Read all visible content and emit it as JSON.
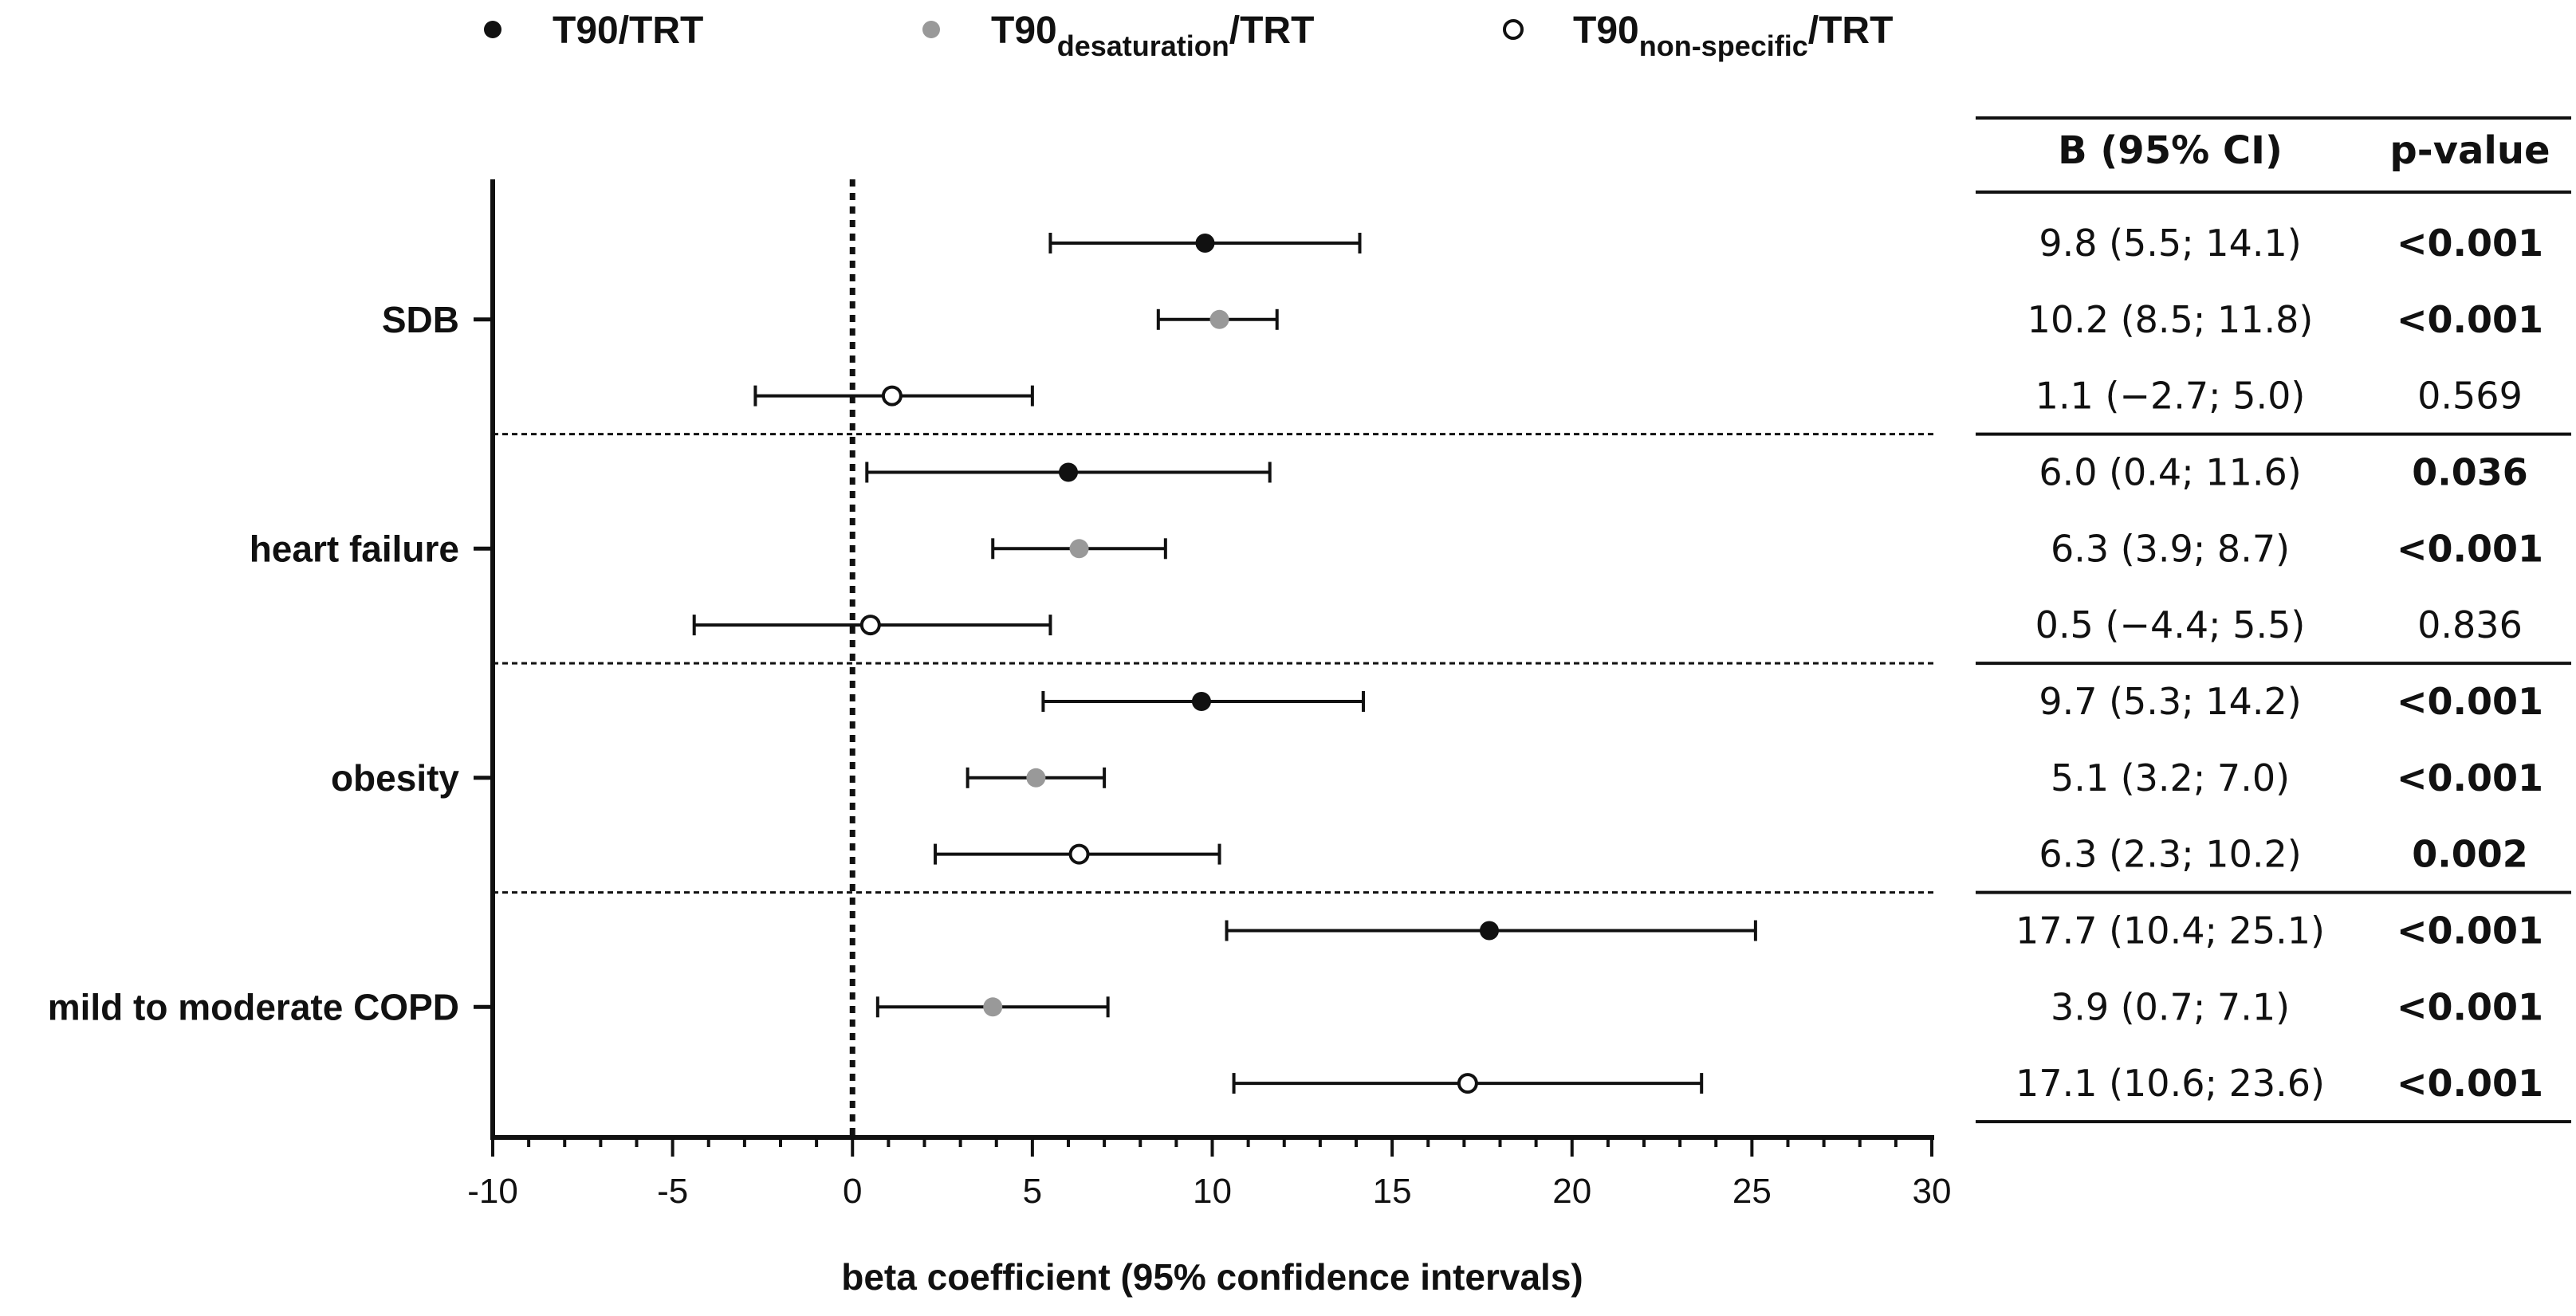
{
  "chart_data": {
    "type": "forest",
    "xlabel": "beta coefficient (95% confidence intervals)",
    "xlim": [
      -10,
      30
    ],
    "xticks": [
      -10,
      -5,
      0,
      5,
      10,
      15,
      20,
      25,
      30
    ],
    "reference_line": 0,
    "legend": [
      {
        "key": "t90",
        "main": "T90",
        "sub": "",
        "suffix": "/TRT",
        "marker": "filled-black"
      },
      {
        "key": "desat",
        "main": "T90",
        "sub": "desaturation",
        "suffix": "/TRT",
        "marker": "filled-gray"
      },
      {
        "key": "nonspec",
        "main": "T90",
        "sub": "non-specific",
        "suffix": "/TRT",
        "marker": "open"
      }
    ],
    "table_headers": {
      "ci": "B (95% CI)",
      "p": "p-value"
    },
    "groups": [
      {
        "label": "SDB",
        "rows": [
          {
            "series": "t90",
            "estimate": 9.8,
            "lower": 5.5,
            "upper": 14.1,
            "ci_text": "9.8 (5.5; 14.1)",
            "p": "<0.001",
            "significant": true
          },
          {
            "series": "desat",
            "estimate": 10.2,
            "lower": 8.5,
            "upper": 11.8,
            "ci_text": "10.2 (8.5; 11.8)",
            "p": "<0.001",
            "significant": true
          },
          {
            "series": "nonspec",
            "estimate": 1.1,
            "lower": -2.7,
            "upper": 5.0,
            "ci_text": "1.1 (−2.7; 5.0)",
            "p": "0.569",
            "significant": false
          }
        ]
      },
      {
        "label": "heart failure",
        "rows": [
          {
            "series": "t90",
            "estimate": 6.0,
            "lower": 0.4,
            "upper": 11.6,
            "ci_text": "6.0 (0.4; 11.6)",
            "p": "0.036",
            "significant": true
          },
          {
            "series": "desat",
            "estimate": 6.3,
            "lower": 3.9,
            "upper": 8.7,
            "ci_text": "6.3 (3.9; 8.7)",
            "p": "<0.001",
            "significant": true
          },
          {
            "series": "nonspec",
            "estimate": 0.5,
            "lower": -4.4,
            "upper": 5.5,
            "ci_text": "0.5 (−4.4; 5.5)",
            "p": "0.836",
            "significant": false
          }
        ]
      },
      {
        "label": "obesity",
        "rows": [
          {
            "series": "t90",
            "estimate": 9.7,
            "lower": 5.3,
            "upper": 14.2,
            "ci_text": "9.7 (5.3; 14.2)",
            "p": "<0.001",
            "significant": true
          },
          {
            "series": "desat",
            "estimate": 5.1,
            "lower": 3.2,
            "upper": 7.0,
            "ci_text": "5.1 (3.2; 7.0)",
            "p": "<0.001",
            "significant": true
          },
          {
            "series": "nonspec",
            "estimate": 6.3,
            "lower": 2.3,
            "upper": 10.2,
            "ci_text": "6.3 (2.3; 10.2)",
            "p": "0.002",
            "significant": true
          }
        ]
      },
      {
        "label": "mild to moderate COPD",
        "rows": [
          {
            "series": "t90",
            "estimate": 17.7,
            "lower": 10.4,
            "upper": 25.1,
            "ci_text": "17.7 (10.4; 25.1)",
            "p": "<0.001",
            "significant": true
          },
          {
            "series": "desat",
            "estimate": 3.9,
            "lower": 0.7,
            "upper": 7.1,
            "ci_text": "3.9 (0.7; 7.1)",
            "p": "<0.001",
            "significant": true
          },
          {
            "series": "nonspec",
            "estimate": 17.1,
            "lower": 10.6,
            "upper": 23.6,
            "ci_text": "17.1 (10.6; 23.6)",
            "p": "<0.001",
            "significant": true
          }
        ]
      }
    ],
    "colors": {
      "t90": "#111111",
      "desat": "#999999",
      "nonspec": "#ffffff",
      "stroke": "#111111"
    }
  }
}
